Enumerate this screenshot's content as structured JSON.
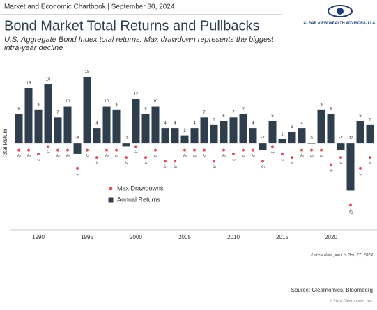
{
  "header": {
    "chartbook": "Market and Economic Chartbook | September 30, 2024",
    "logo": "CLEAR VIEW WEALTH ADVISORS, LLC"
  },
  "chart_data": {
    "type": "bar",
    "title": "Bond Market Total Returns and Pullbacks",
    "subtitle": "U.S. Aggregate Bond Index total returns. Max drawdown represents the biggest intra-year decline",
    "y_label": "Total Return",
    "categories": [
      null,
      null,
      1990,
      null,
      null,
      null,
      null,
      1995,
      null,
      null,
      null,
      null,
      2000,
      null,
      null,
      null,
      null,
      2005,
      null,
      null,
      null,
      null,
      2010,
      null,
      null,
      null,
      null,
      2015,
      null,
      null,
      null,
      null,
      2020,
      null,
      null,
      null,
      null
    ],
    "ylim": [
      -19,
      20
    ],
    "legend": "left",
    "series": [
      {
        "name": "Max Drawdowns",
        "type": "scatter",
        "color": "#e0535e",
        "values": [
          -2,
          -2,
          -3,
          -1,
          -2,
          -2,
          -7,
          -2,
          -4,
          -2,
          -2,
          -4,
          -1,
          -4,
          -2,
          -5,
          -5,
          -2,
          -2,
          -2,
          -5,
          -2,
          -3,
          -2,
          -2,
          -5,
          -1,
          -3,
          -4,
          -2,
          -2,
          -2,
          -6,
          -4,
          -17,
          -7,
          -4
        ]
      },
      {
        "name": "Annual Returns",
        "type": "bar",
        "color": "#2f3e4c",
        "values": [
          8,
          15,
          9,
          16,
          7,
          10,
          -3,
          18,
          4,
          10,
          9,
          -1,
          12,
          8,
          10,
          4,
          4,
          2,
          4,
          7,
          5,
          6,
          7,
          8,
          4,
          -2,
          6,
          1,
          3,
          4,
          0,
          9,
          8,
          -2,
          -13,
          6,
          5
        ]
      }
    ],
    "note": "Latest data point is Sep 27, 2024",
    "source": "Source: Clearnomics, Bloomberg",
    "copyright": "© 2024 Clearnomics, Inc."
  }
}
